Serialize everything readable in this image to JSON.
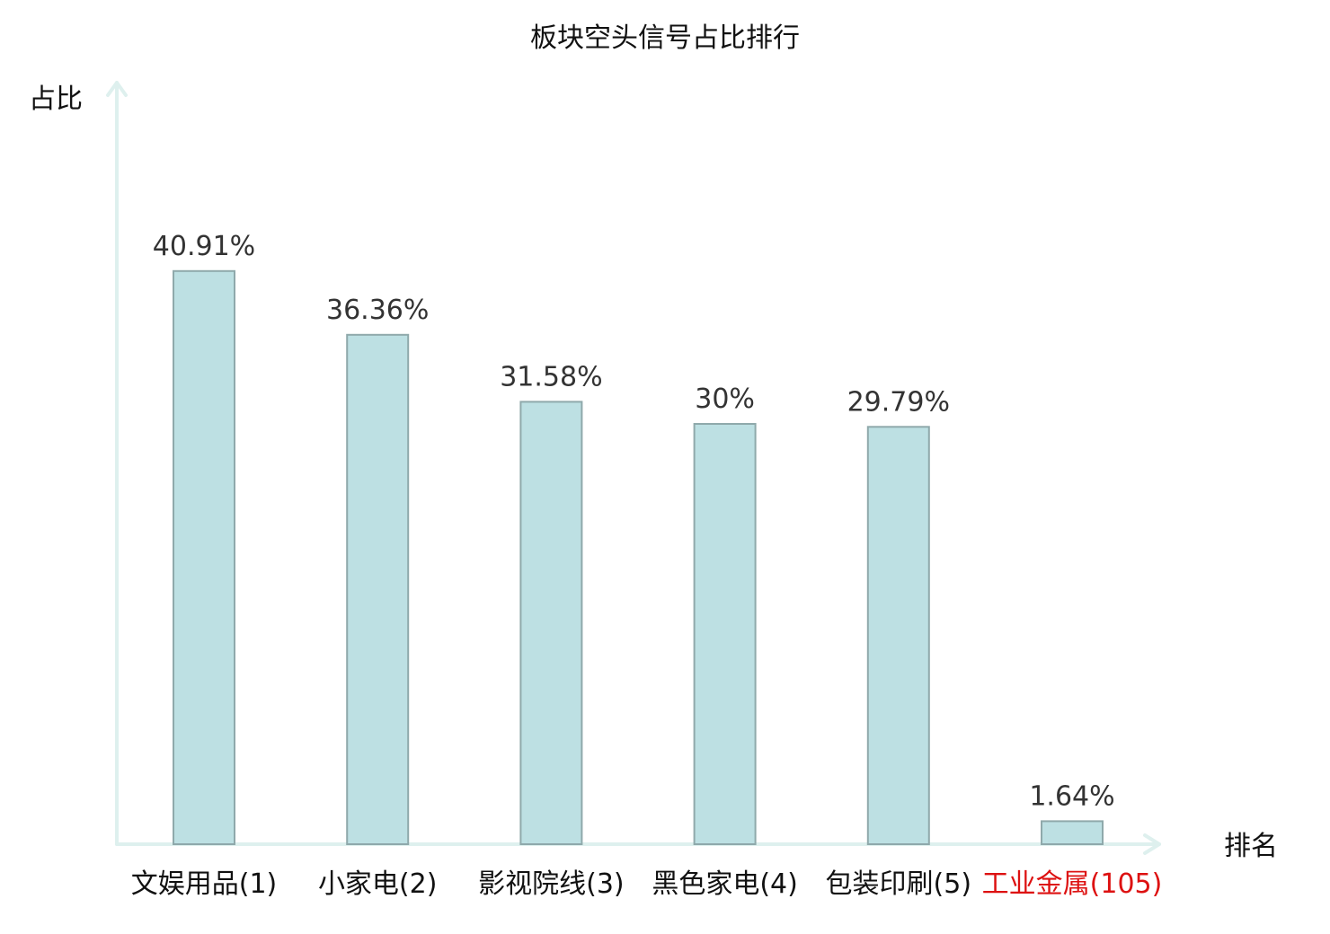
{
  "chart_data": {
    "type": "bar",
    "title": "板块空头信号占比排行",
    "ylabel": "占比",
    "xlabel": "排名",
    "categories": [
      "文娱用品(1)",
      "小家电(2)",
      "影视院线(3)",
      "黑色家电(4)",
      "包装印刷(5)",
      "工业金属(105)"
    ],
    "values": [
      40.91,
      36.36,
      31.58,
      30,
      29.79,
      1.64
    ],
    "value_labels": [
      "40.91%",
      "36.36%",
      "31.58%",
      "30%",
      "29.79%",
      "1.64%"
    ],
    "label_colors": [
      "#111111",
      "#111111",
      "#111111",
      "#111111",
      "#111111",
      "#dd1111"
    ],
    "ylim": [
      0,
      50
    ],
    "grid": false,
    "legend": "none",
    "bar_color": "#bde0e3",
    "axis_color": "#def0ee"
  }
}
